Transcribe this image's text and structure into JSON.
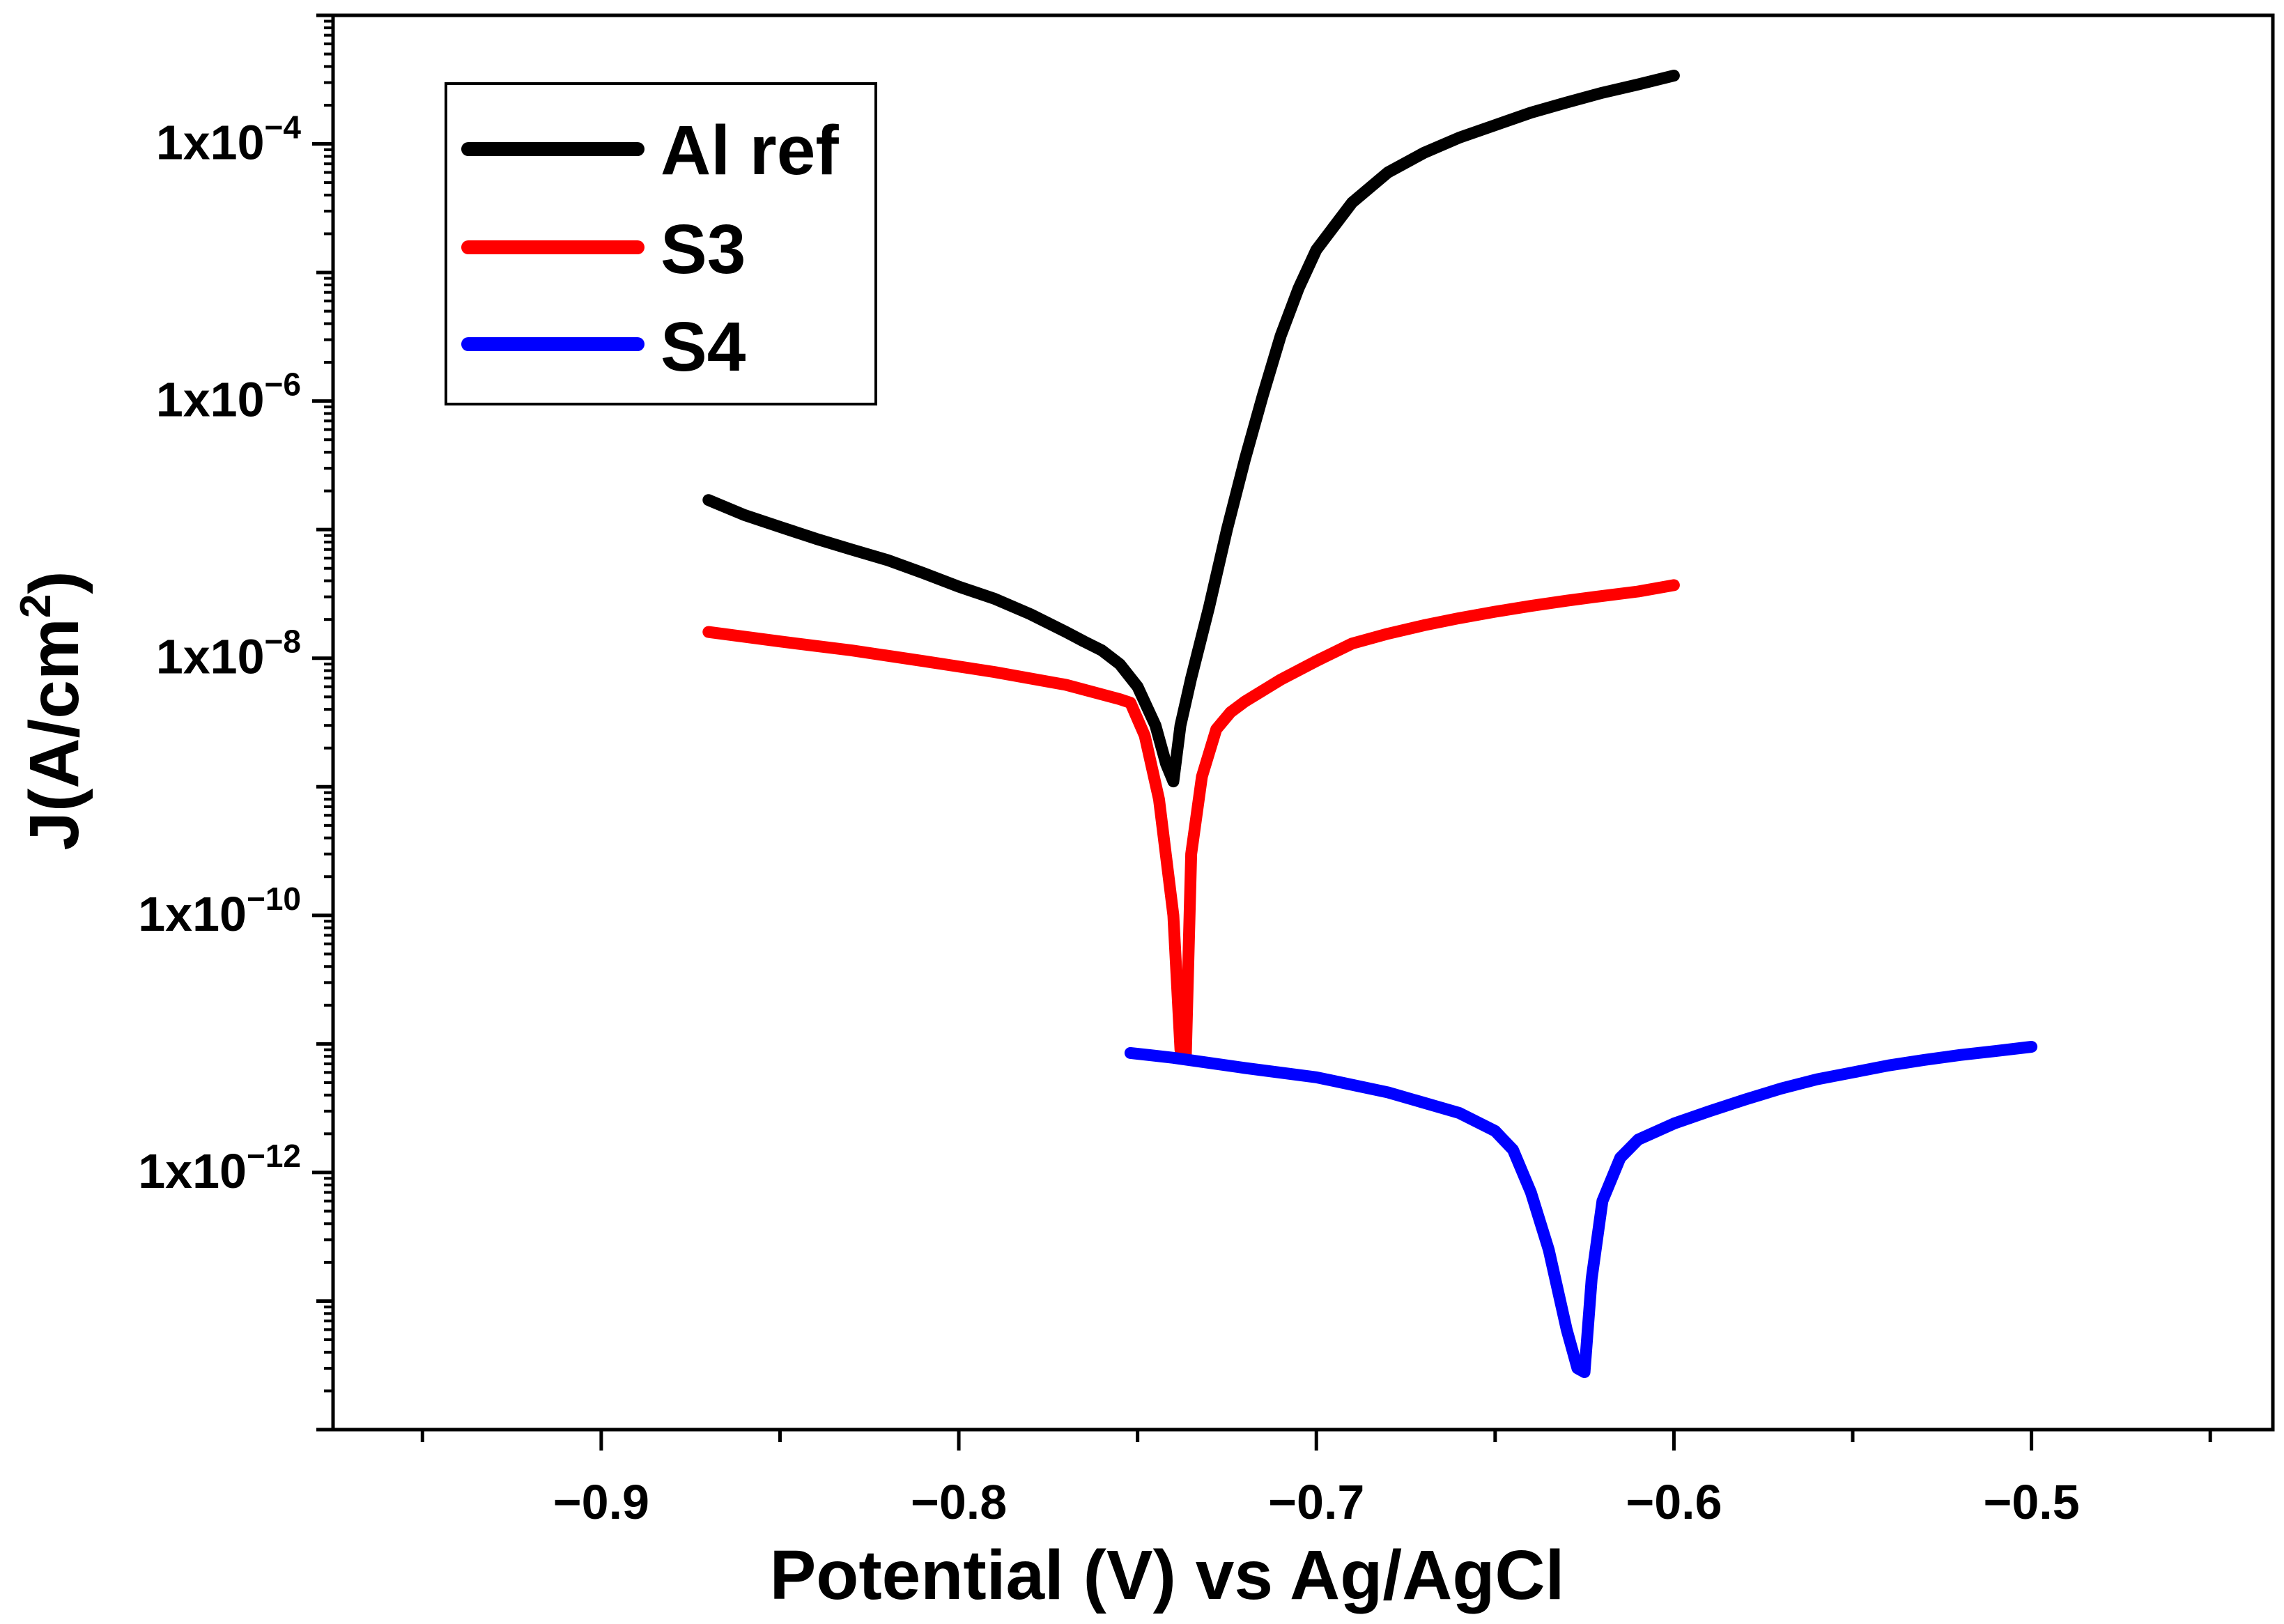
{
  "chart_data": {
    "type": "line",
    "title": "",
    "xlabel": "Potential (V) vs Ag/AgCl",
    "ylabel_main": "J(A/cm",
    "ylabel_sup": "2",
    "ylabel_close": ")",
    "ylabel": "J(A/cm2)",
    "xlim": [
      -0.975,
      -0.4325
    ],
    "ylim": [
      1e-14,
      0.001
    ],
    "yscale": "log",
    "xticks": [
      -0.9,
      -0.8,
      -0.7,
      -0.6,
      -0.5
    ],
    "xtick_labels": [
      "−0.9",
      "−0.8",
      "−0.7",
      "−0.6",
      "−0.5"
    ],
    "yticks": [
      {
        "base": "1x10",
        "exp": "−4",
        "value": 0.0001
      },
      {
        "base": "1x10",
        "exp": "−6",
        "value": 1e-06
      },
      {
        "base": "1x10",
        "exp": "−8",
        "value": 1e-08
      },
      {
        "base": "1x10",
        "exp": "−10",
        "value": 1e-10
      },
      {
        "base": "1x10",
        "exp": "−12",
        "value": 1e-12
      }
    ],
    "legend_position": "top-left",
    "grid": false,
    "series": [
      {
        "name": "Al ref",
        "color": "#000000",
        "x": [
          -0.87,
          -0.86,
          -0.85,
          -0.84,
          -0.83,
          -0.82,
          -0.81,
          -0.8,
          -0.79,
          -0.78,
          -0.77,
          -0.765,
          -0.76,
          -0.755,
          -0.75,
          -0.745,
          -0.742,
          -0.74,
          -0.738,
          -0.735,
          -0.73,
          -0.725,
          -0.72,
          -0.715,
          -0.71,
          -0.705,
          -0.7,
          -0.69,
          -0.68,
          -0.67,
          -0.66,
          -0.65,
          -0.64,
          -0.63,
          -0.62,
          -0.61,
          -0.6
        ],
        "y": [
          1.7e-07,
          1.3e-07,
          1.05e-07,
          8.5e-08,
          7e-08,
          5.8e-08,
          4.6e-08,
          3.6e-08,
          2.9e-08,
          2.2e-08,
          1.6e-08,
          1.35e-08,
          1.15e-08,
          9e-09,
          6e-09,
          3e-09,
          1.5e-09,
          1.1e-09,
          3e-09,
          7e-09,
          2.5e-08,
          1e-07,
          3.5e-07,
          1.1e-06,
          3.2e-06,
          7.5e-06,
          1.5e-05,
          3.5e-05,
          6e-05,
          8.5e-05,
          0.000112,
          0.00014,
          0.000175,
          0.00021,
          0.00025,
          0.00029,
          0.00034
        ]
      },
      {
        "name": "S3",
        "color": "#ff0000",
        "x": [
          -0.87,
          -0.85,
          -0.83,
          -0.81,
          -0.79,
          -0.77,
          -0.755,
          -0.752,
          -0.748,
          -0.744,
          -0.74,
          -0.738,
          -0.7365,
          -0.735,
          -0.732,
          -0.728,
          -0.724,
          -0.72,
          -0.71,
          -0.7,
          -0.69,
          -0.68,
          -0.67,
          -0.66,
          -0.65,
          -0.64,
          -0.63,
          -0.62,
          -0.61,
          -0.6
        ],
        "y": [
          1.6e-08,
          1.35e-08,
          1.15e-08,
          9.5e-09,
          7.8e-09,
          6.2e-09,
          4.8e-09,
          4.5e-09,
          2.5e-09,
          8e-10,
          1e-10,
          9e-12,
          8e-12,
          3e-10,
          1.2e-09,
          2.8e-09,
          3.8e-09,
          4.6e-09,
          6.8e-09,
          9.5e-09,
          1.3e-08,
          1.55e-08,
          1.8e-08,
          2.05e-08,
          2.3e-08,
          2.55e-08,
          2.8e-08,
          3.05e-08,
          3.3e-08,
          3.7e-08
        ]
      },
      {
        "name": "S4",
        "color": "#0000ff",
        "x": [
          -0.752,
          -0.74,
          -0.72,
          -0.7,
          -0.68,
          -0.66,
          -0.65,
          -0.645,
          -0.64,
          -0.635,
          -0.63,
          -0.627,
          -0.625,
          -0.623,
          -0.62,
          -0.615,
          -0.61,
          -0.6,
          -0.59,
          -0.58,
          -0.57,
          -0.56,
          -0.55,
          -0.54,
          -0.53,
          -0.52,
          -0.51,
          -0.5
        ],
        "y": [
          8.5e-12,
          7.8e-12,
          6.5e-12,
          5.5e-12,
          4.2e-12,
          2.9e-12,
          2.1e-12,
          1.5e-12,
          7e-13,
          2.5e-13,
          6e-14,
          3e-14,
          2.8e-14,
          1.5e-13,
          6e-13,
          1.3e-12,
          1.8e-12,
          2.4e-12,
          3e-12,
          3.7e-12,
          4.5e-12,
          5.3e-12,
          6e-12,
          6.8e-12,
          7.5e-12,
          8.2e-12,
          8.8e-12,
          9.5e-12
        ]
      }
    ]
  }
}
